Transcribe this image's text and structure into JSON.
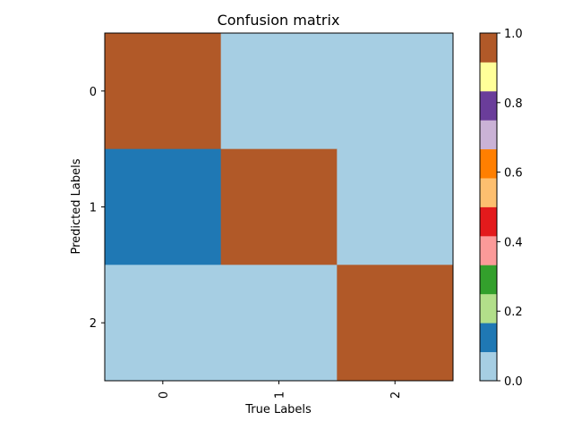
{
  "chart_data": {
    "type": "heatmap",
    "title": "Confusion matrix",
    "xlabel": "True Labels",
    "ylabel": "Predicted Labels",
    "x_categories": [
      "0",
      "1",
      "2"
    ],
    "y_categories": [
      "0",
      "1",
      "2"
    ],
    "matrix": [
      [
        1.0,
        0.0,
        0.0
      ],
      [
        0.1,
        1.0,
        0.0
      ],
      [
        0.0,
        0.0,
        1.0
      ]
    ],
    "colorbar": {
      "min": 0.0,
      "max": 1.0,
      "tick_labels": [
        "0.0",
        "0.2",
        "0.4",
        "0.6",
        "0.8",
        "1.0"
      ],
      "colormap": "Paired",
      "colors": [
        "#a6cee3",
        "#1f78b4",
        "#b2df8a",
        "#33a02c",
        "#fb9a99",
        "#e31a1c",
        "#fdbf6f",
        "#ff7f00",
        "#cab2d6",
        "#6a3d9a",
        "#ffff99",
        "#b15928"
      ]
    },
    "x_tick_rotation": "vertical"
  }
}
